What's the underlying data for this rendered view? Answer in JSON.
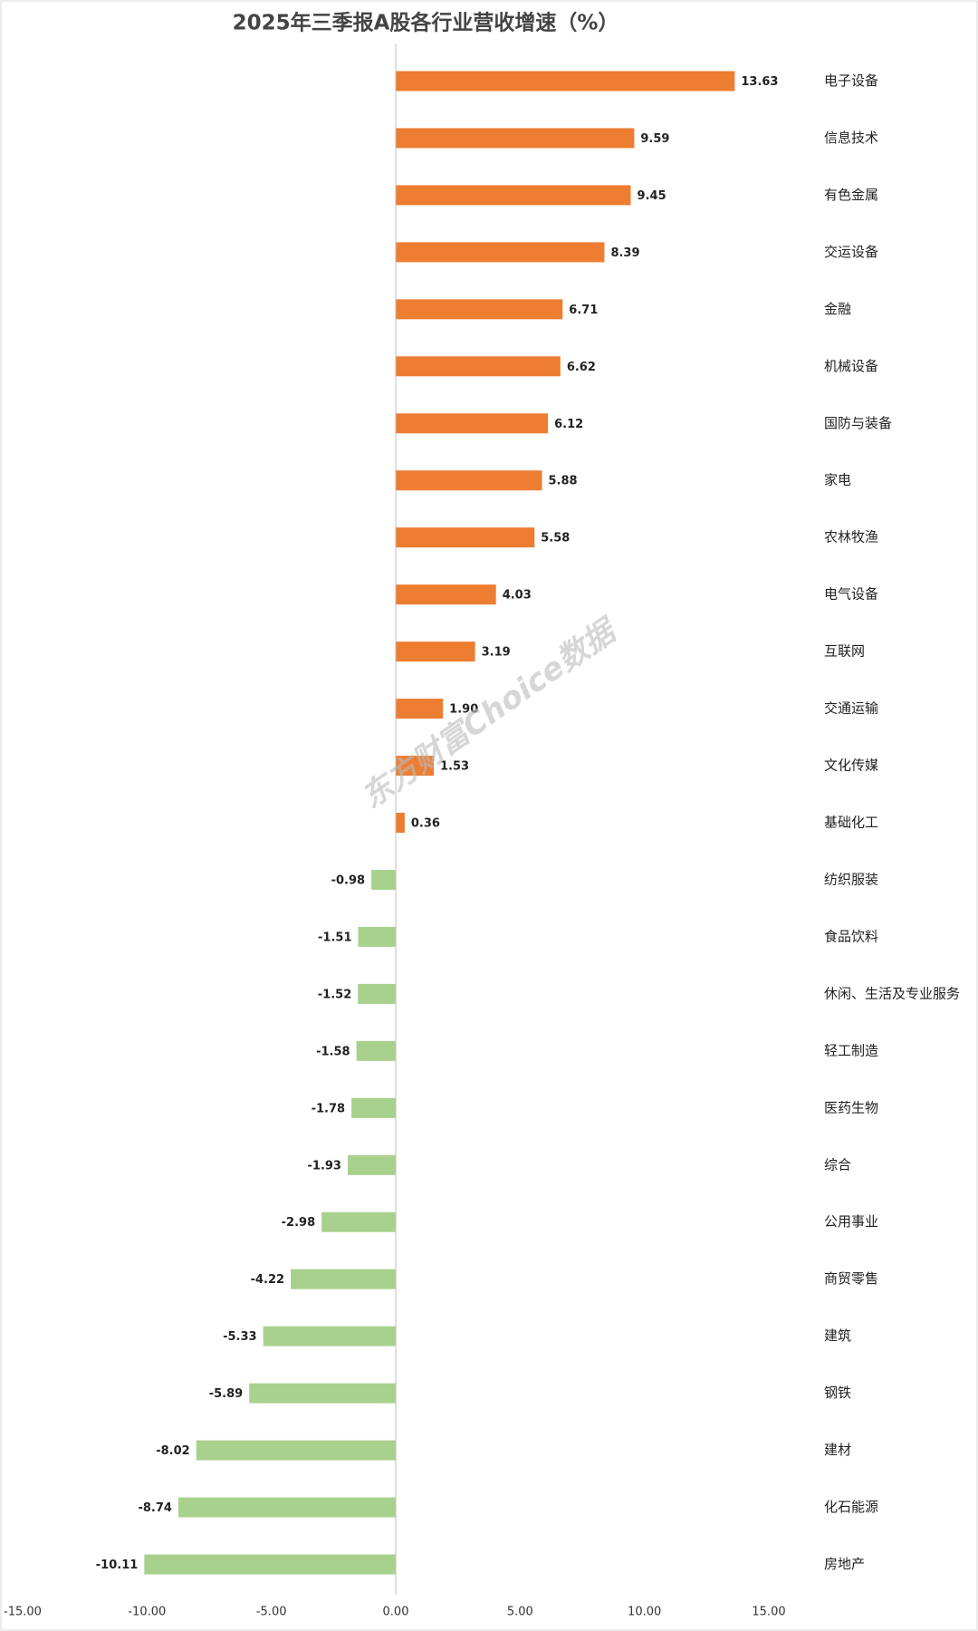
{
  "chart_data": {
    "type": "hbar",
    "title": "2025年三季报A股各行业营收增速（%）",
    "watermark": "东方财富Choice数据",
    "categories": [
      "电子设备",
      "信息技术",
      "有色金属",
      "交运设备",
      "金融",
      "机械设备",
      "国防与装备",
      "家电",
      "农林牧渔",
      "电气设备",
      "互联网",
      "交通运输",
      "文化传媒",
      "基础化工",
      "纺织服装",
      "食品饮料",
      "休闲、生活及专业服务",
      "轻工制造",
      "医药生物",
      "综合",
      "公用事业",
      "商贸零售",
      "建筑",
      "钢铁",
      "建材",
      "化石能源",
      "房地产"
    ],
    "values": [
      13.63,
      9.59,
      9.45,
      8.39,
      6.71,
      6.62,
      6.12,
      5.88,
      5.58,
      4.03,
      3.19,
      1.9,
      1.53,
      0.36,
      -0.98,
      -1.51,
      -1.52,
      -1.58,
      -1.78,
      -1.93,
      -2.98,
      -4.22,
      -5.33,
      -5.89,
      -8.02,
      -8.74,
      -10.11
    ],
    "value_labels": [
      "13.63",
      "9.59",
      "9.45",
      "8.39",
      "6.71",
      "6.62",
      "6.12",
      "5.88",
      "5.58",
      "4.03",
      "3.19",
      "1.90",
      "1.53",
      "0.36",
      "-0.98",
      "-1.51",
      "-1.52",
      "-1.58",
      "-1.78",
      "-1.93",
      "-2.98",
      "-4.22",
      "-5.33",
      "-5.89",
      "-8.02",
      "-8.74",
      "-10.11"
    ],
    "positive_color": "#ed7d31",
    "negative_color": "#a9d18e",
    "xlim": [
      -15,
      15
    ],
    "xticks": [
      {
        "value": -15,
        "label": "-15.00"
      },
      {
        "value": -10,
        "label": "-10.00"
      },
      {
        "value": -5,
        "label": "-5.00"
      },
      {
        "value": 0,
        "label": "0.00"
      },
      {
        "value": 5,
        "label": "5.00"
      },
      {
        "value": 10,
        "label": "10.00"
      },
      {
        "value": 15,
        "label": "15.00"
      }
    ],
    "grid": false
  }
}
